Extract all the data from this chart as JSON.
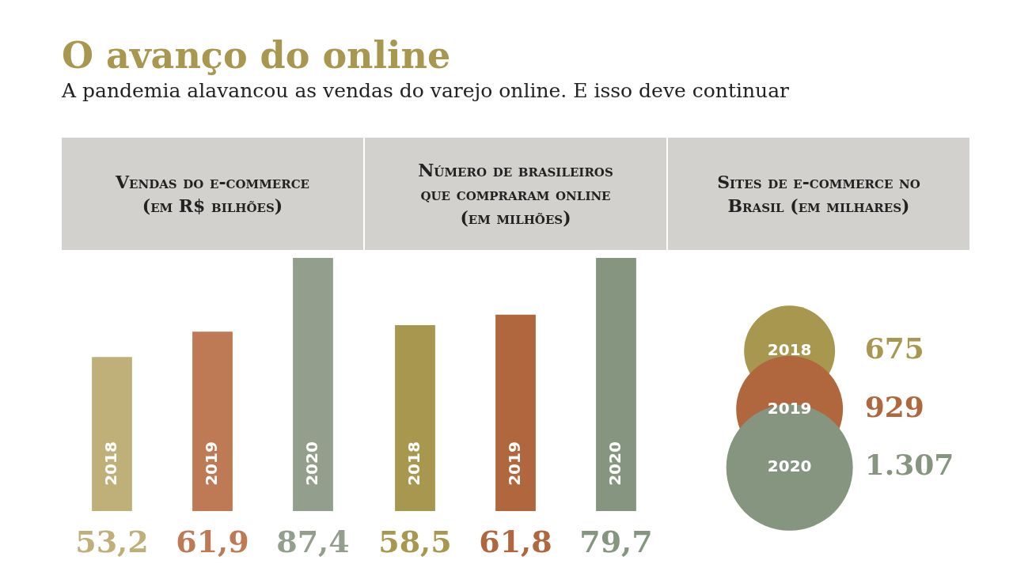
{
  "chart_data": [
    {
      "type": "bar",
      "title": "Vendas do e-commerce (em R$ bilhões)",
      "annotations": [
        "O avanço do online",
        "A pandemia alavancou as vendas do varejo online. E isso deve continuar"
      ],
      "categories": [
        "2018",
        "2019",
        "2020"
      ],
      "values": [
        53.2,
        61.9,
        87.4
      ],
      "colors": [
        "#bfb07a",
        "#bd7a55",
        "#939f8c"
      ],
      "value_labels": [
        "53,2",
        "61,9",
        "87,4"
      ]
    },
    {
      "type": "bar",
      "title": "Número de brasileiros que compraram online (em milhões)",
      "categories": [
        "2018",
        "2019",
        "2020"
      ],
      "values": [
        58.5,
        61.8,
        79.7
      ],
      "colors": [
        "#a8974e",
        "#b0673e",
        "#86957f"
      ],
      "value_labels": [
        "58,5",
        "61,8",
        "79,7"
      ]
    },
    {
      "type": "other",
      "title": "Sites de e-commerce no Brasil (em milhares)",
      "categories": [
        "2018",
        "2019",
        "2020"
      ],
      "values": [
        675,
        929,
        1307
      ],
      "colors": [
        "#a8974e",
        "#b0673e",
        "#86957f"
      ],
      "value_labels": [
        "675",
        "929",
        "1.307"
      ]
    }
  ]
}
